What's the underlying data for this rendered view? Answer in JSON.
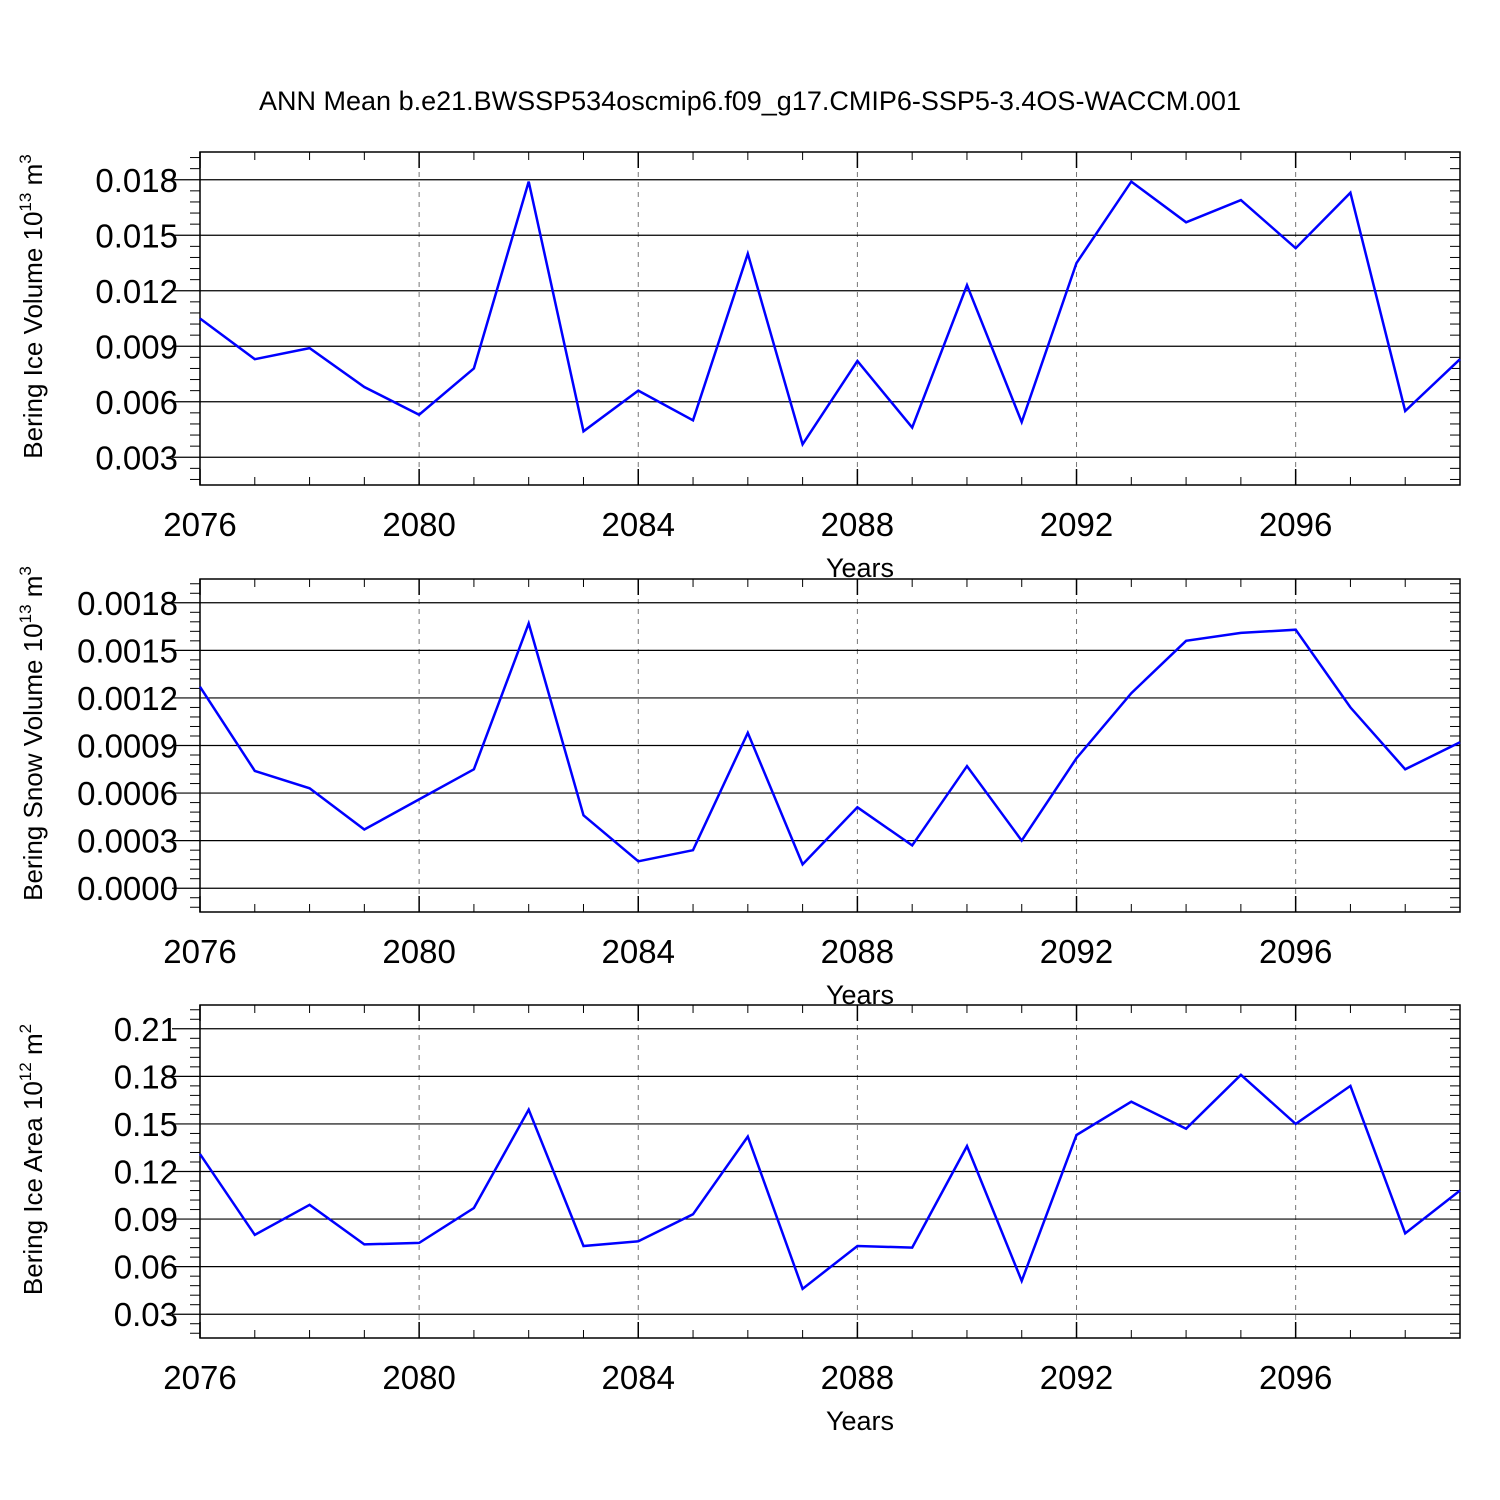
{
  "title": "ANN Mean b.e21.BWSSP534oscmip6.f09_g17.CMIP6-SSP5-3.4OS-WACCM.001",
  "colors": {
    "line": "#0000ff",
    "axis": "#000000",
    "grid": "#777777"
  },
  "chart_data": [
    {
      "type": "line",
      "xlabel": "Years",
      "ylabel_main": "Bering Ice Volume 10",
      "ylabel_sup": "13",
      "ylabel_unit": "m",
      "ylabel_unit_sup": "3",
      "xlim": [
        2076,
        2099
      ],
      "ylim": [
        0.0015,
        0.0195
      ],
      "xticks": [
        "2076",
        "2080",
        "2084",
        "2088",
        "2092",
        "2096"
      ],
      "yticks": [
        "0.003",
        "0.006",
        "0.009",
        "0.012",
        "0.015",
        "0.018"
      ],
      "x": [
        2076,
        2077,
        2078,
        2079,
        2080,
        2081,
        2082,
        2083,
        2084,
        2085,
        2086,
        2087,
        2088,
        2089,
        2090,
        2091,
        2092,
        2093,
        2094,
        2095,
        2096,
        2097,
        2098,
        2099
      ],
      "values": [
        0.0105,
        0.0083,
        0.0089,
        0.0068,
        0.0053,
        0.0078,
        0.0179,
        0.0044,
        0.0066,
        0.005,
        0.014,
        0.0037,
        0.0082,
        0.0046,
        0.0123,
        0.0049,
        0.0135,
        0.0179,
        0.0157,
        0.0169,
        0.0143,
        0.0173,
        0.0055,
        0.0083
      ]
    },
    {
      "type": "line",
      "xlabel": "Years",
      "ylabel_main": "Bering Snow Volume 10",
      "ylabel_sup": "13",
      "ylabel_unit": "m",
      "ylabel_unit_sup": "3",
      "xlim": [
        2076,
        2099
      ],
      "ylim": [
        -0.00015,
        0.00195
      ],
      "xticks": [
        "2076",
        "2080",
        "2084",
        "2088",
        "2092",
        "2096"
      ],
      "yticks": [
        "0.0000",
        "0.0003",
        "0.0006",
        "0.0009",
        "0.0012",
        "0.0015",
        "0.0018"
      ],
      "x": [
        2076,
        2077,
        2078,
        2079,
        2080,
        2081,
        2082,
        2083,
        2084,
        2085,
        2086,
        2087,
        2088,
        2089,
        2090,
        2091,
        2092,
        2093,
        2094,
        2095,
        2096,
        2097,
        2098,
        2099
      ],
      "values": [
        0.00127,
        0.00074,
        0.00063,
        0.00037,
        0.00056,
        0.00075,
        0.00167,
        0.00046,
        0.00017,
        0.00024,
        0.00098,
        0.00015,
        0.00051,
        0.00027,
        0.00077,
        0.0003,
        0.00082,
        0.00123,
        0.00156,
        0.00161,
        0.00163,
        0.00114,
        0.00075,
        0.00092
      ]
    },
    {
      "type": "line",
      "xlabel": "Years",
      "ylabel_main": "Bering Ice Area 10",
      "ylabel_sup": "12",
      "ylabel_unit": "m",
      "ylabel_unit_sup": "2",
      "xlim": [
        2076,
        2099
      ],
      "ylim": [
        0.015,
        0.225
      ],
      "xticks": [
        "2076",
        "2080",
        "2084",
        "2088",
        "2092",
        "2096"
      ],
      "yticks": [
        "0.03",
        "0.06",
        "0.09",
        "0.12",
        "0.15",
        "0.18",
        "0.21"
      ],
      "x": [
        2076,
        2077,
        2078,
        2079,
        2080,
        2081,
        2082,
        2083,
        2084,
        2085,
        2086,
        2087,
        2088,
        2089,
        2090,
        2091,
        2092,
        2093,
        2094,
        2095,
        2096,
        2097,
        2098,
        2099
      ],
      "values": [
        0.131,
        0.08,
        0.099,
        0.074,
        0.075,
        0.097,
        0.159,
        0.073,
        0.076,
        0.093,
        0.142,
        0.046,
        0.073,
        0.072,
        0.136,
        0.051,
        0.143,
        0.164,
        0.147,
        0.181,
        0.15,
        0.174,
        0.081,
        0.108
      ]
    }
  ]
}
